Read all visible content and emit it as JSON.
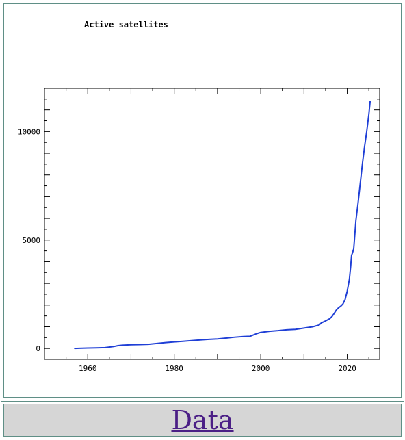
{
  "chart_data": {
    "type": "line",
    "title": "Active satellites",
    "xlabel": "",
    "ylabel": "",
    "xlim": [
      1950,
      2027.5
    ],
    "ylim": [
      -500,
      12000
    ],
    "x_ticks": [
      1960,
      1980,
      2000,
      2020
    ],
    "x_tick_labels": [
      "1960",
      "1980",
      "2000",
      "2020"
    ],
    "y_ticks": [
      0,
      5000,
      10000
    ],
    "y_tick_labels": [
      "0",
      "5000",
      "10000"
    ],
    "grid": false,
    "line_color": "#1f3fd6",
    "series": [
      {
        "x": [
          1957.0,
          1958.0,
          1960.0,
          1962.0,
          1964.0,
          1966.0,
          1967.0,
          1968.0,
          1970.0,
          1972.0,
          1974.0,
          1976.0,
          1978.0,
          1980.0,
          1982.0,
          1984.0,
          1986.0,
          1988.0,
          1990.0,
          1992.0,
          1994.0,
          1996.0,
          1997.5,
          1998.0,
          1999.0,
          2000.0,
          2002.0,
          2004.0,
          2006.0,
          2008.0,
          2010.0,
          2012.0,
          2013.5,
          2014.0,
          2015.0,
          2016.0,
          2016.5,
          2017.0,
          2017.5,
          2018.0,
          2018.5,
          2019.0,
          2019.5,
          2020.0,
          2020.5,
          2020.8,
          2021.0,
          2021.2,
          2021.5,
          2022.0,
          2022.5,
          2023.0,
          2023.5,
          2024.0,
          2024.5,
          2025.0,
          2025.3
        ],
        "y": [
          0,
          10,
          20,
          30,
          40,
          90,
          130,
          150,
          170,
          180,
          190,
          230,
          270,
          300,
          330,
          360,
          390,
          420,
          440,
          480,
          520,
          550,
          560,
          600,
          680,
          740,
          790,
          820,
          860,
          880,
          940,
          1000,
          1080,
          1180,
          1270,
          1380,
          1480,
          1620,
          1780,
          1880,
          1950,
          2050,
          2250,
          2650,
          3200,
          3800,
          4300,
          4400,
          4600,
          5900,
          6700,
          7600,
          8500,
          9300,
          10000,
          10800,
          11400
        ]
      }
    ]
  },
  "footer": {
    "data_link": "Data"
  }
}
